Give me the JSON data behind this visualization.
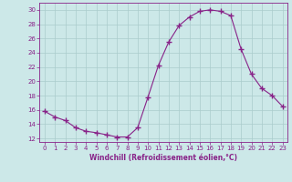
{
  "x": [
    0,
    1,
    2,
    3,
    4,
    5,
    6,
    7,
    8,
    9,
    10,
    11,
    12,
    13,
    14,
    15,
    16,
    17,
    18,
    19,
    20,
    21,
    22,
    23
  ],
  "y": [
    15.8,
    15.0,
    14.5,
    13.5,
    13.0,
    12.8,
    12.5,
    12.2,
    12.2,
    13.5,
    17.8,
    22.2,
    25.5,
    27.8,
    29.0,
    29.8,
    30.0,
    29.8,
    29.2,
    24.5,
    21.0,
    19.0,
    18.0,
    16.5
  ],
  "line_color": "#882288",
  "marker": "+",
  "marker_size": 4,
  "bg_color": "#cce8e8",
  "grid_color": "#aacccc",
  "xlabel": "Windchill (Refroidissement éolien,°C)",
  "xlim": [
    -0.5,
    23.5
  ],
  "ylim": [
    11.5,
    31.0
  ],
  "yticks": [
    12,
    14,
    16,
    18,
    20,
    22,
    24,
    26,
    28,
    30
  ],
  "xticks": [
    0,
    1,
    2,
    3,
    4,
    5,
    6,
    7,
    8,
    9,
    10,
    11,
    12,
    13,
    14,
    15,
    16,
    17,
    18,
    19,
    20,
    21,
    22,
    23
  ],
  "label_color": "#882288",
  "tick_color": "#882288",
  "spine_color": "#882288",
  "label_fontsize": 5.5,
  "tick_fontsize": 5.0
}
